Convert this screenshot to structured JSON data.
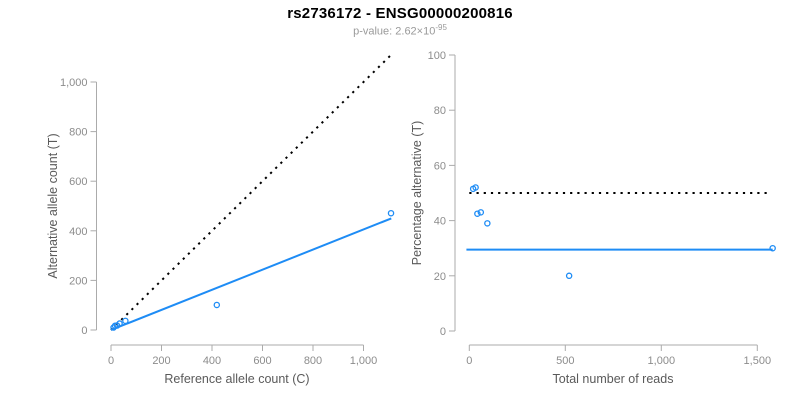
{
  "header": {
    "title": "rs2736172 - ENSG00000200816",
    "subtitle_prefix": "p-value: 2.62×10",
    "subtitle_exponent": "-95"
  },
  "colors": {
    "series": "#1E8CF5",
    "reference_line": "#000000",
    "axis": "#ABABAB",
    "tick_label": "#8C8C8C",
    "axis_title": "#5A5A5A"
  },
  "chart_data": [
    {
      "type": "scatter",
      "title": "",
      "xlabel": "Reference allele count (C)",
      "ylabel": "Alternative allele count (T)",
      "xlim": [
        0,
        1150
      ],
      "ylim": [
        0,
        1110
      ],
      "grid": false,
      "legend": false,
      "xticks": {
        "values": [
          0,
          200,
          400,
          600,
          800,
          1000
        ],
        "labels": [
          "0",
          "200",
          "400",
          "600",
          "800",
          "1,000"
        ]
      },
      "yticks": {
        "values": [
          0,
          200,
          400,
          600,
          800,
          1000
        ],
        "labels": [
          "0",
          "200",
          "400",
          "600",
          "800",
          "1,000"
        ]
      },
      "points": [
        [
          10,
          10
        ],
        [
          16,
          17
        ],
        [
          24,
          18
        ],
        [
          34,
          26
        ],
        [
          57,
          37
        ],
        [
          419,
          101
        ],
        [
          1109,
          471
        ]
      ],
      "lines": [
        {
          "name": "identity-line",
          "style": "dotted",
          "color": "#000000",
          "x1": 0,
          "y1": 0,
          "x2": 1105,
          "y2": 1105
        },
        {
          "name": "fit-line",
          "style": "solid",
          "color": "#1E8CF5",
          "x1": 0,
          "y1": 0,
          "x2": 1110,
          "y2": 450
        }
      ]
    },
    {
      "type": "scatter",
      "title": "",
      "xlabel": "Total number of reads",
      "ylabel": "Percentage alternative (T)",
      "xlim": [
        0,
        1620
      ],
      "ylim": [
        0,
        100
      ],
      "grid": false,
      "legend": false,
      "xticks": {
        "values": [
          0,
          500,
          1000,
          1500
        ],
        "labels": [
          "0",
          "500",
          "1,000",
          "1,500"
        ]
      },
      "yticks": {
        "values": [
          0,
          20,
          40,
          60,
          80,
          100
        ],
        "labels": [
          "0",
          "20",
          "40",
          "60",
          "80",
          "100"
        ]
      },
      "points": [
        [
          20,
          51.5
        ],
        [
          33,
          52
        ],
        [
          42,
          42.5
        ],
        [
          60,
          43
        ],
        [
          94,
          39
        ],
        [
          520,
          20
        ],
        [
          1580,
          30
        ]
      ],
      "lines": [
        {
          "name": "fifty-percent-line",
          "style": "dotted",
          "color": "#000000",
          "x1": 0,
          "y1": 50,
          "x2": 1550,
          "y2": 50
        },
        {
          "name": "mean-percentage-line",
          "style": "solid",
          "color": "#1E8CF5",
          "x1": -15,
          "y1": 29.5,
          "x2": 1580,
          "y2": 29.5
        }
      ]
    }
  ]
}
